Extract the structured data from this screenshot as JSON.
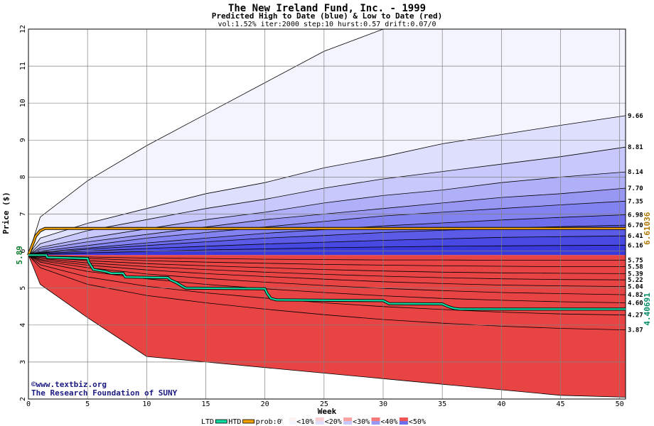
{
  "chart_data": {
    "type": "area",
    "title": "The New Ireland Fund, Inc. - 1999",
    "subtitle": "Predicted High to Date (blue) &  Low to Date (red)",
    "params": "vol:1.52% iter:2000 step:10 hurst:0.57 drift:0.07/0",
    "xlabel": "Week",
    "ylabel": "Price ($)",
    "xlim": [
      0,
      50.5
    ],
    "ylim": [
      2,
      12
    ],
    "x_ticks": [
      0,
      5,
      10,
      15,
      20,
      25,
      30,
      35,
      40,
      45,
      50
    ],
    "y_ticks": [
      2,
      3,
      4,
      5,
      6,
      7,
      8,
      9,
      10,
      11,
      12
    ],
    "grid": true,
    "start_price": "5.89",
    "start_value": 5.89,
    "right_labels_high": [
      "9.66",
      "8.81",
      "8.14",
      "7.70",
      "7.35",
      "6.98",
      "6.70",
      "6.41",
      "6.16"
    ],
    "right_labels_low": [
      "5.75",
      "5.58",
      "5.39",
      "5.22",
      "5.04",
      "4.82",
      "4.60",
      "4.27",
      "3.87"
    ],
    "high_bands": [
      {
        "x": [
          0,
          1,
          5,
          10,
          15,
          20,
          25,
          30,
          35,
          40,
          45,
          50.5
        ],
        "y": [
          5.89,
          6.92,
          7.9,
          8.85,
          9.7,
          10.55,
          11.4,
          12.0,
          12.0,
          12.0,
          12.0,
          12.0
        ]
      },
      {
        "x": [
          0,
          1,
          5,
          10,
          15,
          20,
          25,
          30,
          35,
          40,
          45,
          50.5
        ],
        "y": [
          5.89,
          6.35,
          6.75,
          7.15,
          7.55,
          7.85,
          8.25,
          8.55,
          8.9,
          9.15,
          9.4,
          9.66
        ]
      },
      {
        "x": [
          0,
          1,
          5,
          10,
          15,
          20,
          25,
          30,
          35,
          40,
          45,
          50.5
        ],
        "y": [
          5.89,
          6.2,
          6.55,
          6.85,
          7.15,
          7.4,
          7.7,
          7.95,
          8.15,
          8.35,
          8.55,
          8.81
        ]
      },
      {
        "x": [
          0,
          1,
          5,
          10,
          15,
          20,
          25,
          30,
          35,
          40,
          45,
          50.5
        ],
        "y": [
          5.89,
          6.1,
          6.35,
          6.6,
          6.85,
          7.05,
          7.3,
          7.5,
          7.65,
          7.85,
          8.0,
          8.14
        ]
      },
      {
        "x": [
          0,
          1,
          5,
          10,
          15,
          20,
          25,
          30,
          35,
          40,
          45,
          50.5
        ],
        "y": [
          5.89,
          6.05,
          6.25,
          6.45,
          6.65,
          6.85,
          7.0,
          7.15,
          7.3,
          7.45,
          7.55,
          7.7
        ]
      },
      {
        "x": [
          0,
          1,
          5,
          10,
          15,
          20,
          25,
          30,
          35,
          40,
          45,
          50.5
        ],
        "y": [
          5.89,
          6.0,
          6.15,
          6.35,
          6.5,
          6.65,
          6.8,
          6.95,
          7.05,
          7.15,
          7.25,
          7.35
        ]
      },
      {
        "x": [
          0,
          1,
          5,
          10,
          15,
          20,
          25,
          30,
          35,
          40,
          45,
          50.5
        ],
        "y": [
          5.89,
          5.97,
          6.08,
          6.22,
          6.35,
          6.48,
          6.58,
          6.68,
          6.76,
          6.84,
          6.91,
          6.98
        ]
      },
      {
        "x": [
          0,
          1,
          5,
          10,
          15,
          20,
          25,
          30,
          35,
          40,
          45,
          50.5
        ],
        "y": [
          5.89,
          5.95,
          6.05,
          6.15,
          6.25,
          6.35,
          6.42,
          6.5,
          6.56,
          6.62,
          6.66,
          6.7
        ]
      },
      {
        "x": [
          0,
          1,
          5,
          10,
          15,
          20,
          25,
          30,
          35,
          40,
          45,
          50.5
        ],
        "y": [
          5.89,
          5.93,
          6.0,
          6.07,
          6.13,
          6.19,
          6.24,
          6.29,
          6.33,
          6.37,
          6.39,
          6.41
        ]
      },
      {
        "x": [
          0,
          1,
          5,
          10,
          15,
          20,
          25,
          30,
          35,
          40,
          45,
          50.5
        ],
        "y": [
          5.89,
          5.91,
          5.95,
          5.99,
          6.03,
          6.06,
          6.09,
          6.11,
          6.13,
          6.14,
          6.15,
          6.16
        ]
      }
    ],
    "low_bands": [
      {
        "x": [
          0,
          1,
          5,
          10,
          15,
          20,
          25,
          30,
          35,
          40,
          45,
          50.5
        ],
        "y": [
          5.89,
          5.87,
          5.84,
          5.81,
          5.8,
          5.78,
          5.77,
          5.76,
          5.76,
          5.75,
          5.75,
          5.75
        ]
      },
      {
        "x": [
          0,
          1,
          5,
          10,
          15,
          20,
          25,
          30,
          35,
          40,
          45,
          50.5
        ],
        "y": [
          5.89,
          5.85,
          5.8,
          5.74,
          5.7,
          5.67,
          5.64,
          5.62,
          5.6,
          5.59,
          5.58,
          5.58
        ]
      },
      {
        "x": [
          0,
          1,
          5,
          10,
          15,
          20,
          25,
          30,
          35,
          40,
          45,
          50.5
        ],
        "y": [
          5.89,
          5.83,
          5.74,
          5.66,
          5.6,
          5.55,
          5.5,
          5.46,
          5.43,
          5.41,
          5.4,
          5.39
        ]
      },
      {
        "x": [
          0,
          1,
          5,
          10,
          15,
          20,
          25,
          30,
          35,
          40,
          45,
          50.5
        ],
        "y": [
          5.89,
          5.8,
          5.68,
          5.58,
          5.5,
          5.43,
          5.37,
          5.32,
          5.28,
          5.25,
          5.23,
          5.22
        ]
      },
      {
        "x": [
          0,
          1,
          5,
          10,
          15,
          20,
          25,
          30,
          35,
          40,
          45,
          50.5
        ],
        "y": [
          5.89,
          5.77,
          5.62,
          5.49,
          5.39,
          5.31,
          5.24,
          5.17,
          5.12,
          5.08,
          5.06,
          5.04
        ]
      },
      {
        "x": [
          0,
          1,
          5,
          10,
          15,
          20,
          25,
          30,
          35,
          40,
          45,
          50.5
        ],
        "y": [
          5.89,
          5.74,
          5.55,
          5.38,
          5.26,
          5.16,
          5.07,
          4.99,
          4.93,
          4.88,
          4.85,
          4.82
        ]
      },
      {
        "x": [
          0,
          1,
          5,
          10,
          15,
          20,
          25,
          30,
          35,
          40,
          45,
          50.5
        ],
        "y": [
          5.89,
          5.7,
          5.45,
          5.25,
          5.1,
          4.98,
          4.88,
          4.79,
          4.72,
          4.67,
          4.63,
          4.6
        ]
      },
      {
        "x": [
          0,
          1,
          5,
          10,
          15,
          20,
          25,
          30,
          35,
          40,
          45,
          50.5
        ],
        "y": [
          5.89,
          5.63,
          5.3,
          5.05,
          4.87,
          4.73,
          4.6,
          4.5,
          4.42,
          4.35,
          4.3,
          4.27
        ]
      },
      {
        "x": [
          0,
          1,
          5,
          10,
          15,
          20,
          25,
          30,
          35,
          40,
          45,
          50.5
        ],
        "y": [
          5.89,
          5.55,
          5.1,
          4.8,
          4.6,
          4.43,
          4.28,
          4.15,
          4.05,
          3.97,
          3.91,
          3.87
        ]
      },
      {
        "x": [
          0,
          1,
          5,
          10,
          15,
          20,
          25,
          30,
          35,
          40,
          45,
          50.5
        ],
        "y": [
          5.89,
          5.1,
          4.2,
          3.15,
          3.0,
          2.85,
          2.7,
          2.55,
          2.4,
          2.25,
          2.1,
          2.05
        ]
      }
    ],
    "htd": {
      "value": 6.61,
      "x": [
        0,
        0.5,
        0.6,
        1.0,
        1.4,
        50.5
      ],
      "y": [
        5.89,
        6.3,
        6.4,
        6.55,
        6.61,
        6.61
      ]
    },
    "ltd": {
      "x": [
        0,
        1.5,
        1.6,
        5.0,
        5.1,
        5.4,
        5.5,
        6.5,
        7.0,
        8.0,
        8.2,
        11.8,
        12.0,
        12.5,
        13.0,
        13.3,
        20.0,
        20.2,
        20.5,
        21.0,
        30.0,
        30.5,
        35.0,
        35.5,
        36.0,
        36.5,
        50.5
      ],
      "y": [
        5.89,
        5.89,
        5.83,
        5.8,
        5.7,
        5.55,
        5.5,
        5.45,
        5.4,
        5.4,
        5.3,
        5.28,
        5.22,
        5.15,
        5.05,
        5.0,
        4.98,
        4.85,
        4.72,
        4.68,
        4.66,
        4.58,
        4.57,
        4.5,
        4.45,
        4.43,
        4.43
      ]
    },
    "ltd_label": "4.40691",
    "htd_label": "6.61036",
    "legend": {
      "items": [
        "LTD",
        "HTD",
        "prob:0%",
        "<10%",
        "<20%",
        "<30%",
        "<40%",
        "<50%"
      ],
      "placement": "bottom"
    },
    "blue_colors": [
      "#f4f4fe",
      "#dedefd",
      "#c8c8fc",
      "#b0b0f8",
      "#9898f4",
      "#8282f0",
      "#6e6eec",
      "#5b5be8",
      "#4848e2",
      "#3a3adc"
    ],
    "red_colors": [
      "#fdf3f3",
      "#fde3e3",
      "#fcd0d0",
      "#fbbaba",
      "#f9a3a3",
      "#f78d8d",
      "#f47878",
      "#f16464",
      "#ee5454",
      "#e94444"
    ],
    "watermark_line1": "©www.textbiz.org",
    "watermark_line2": "The Research Foundation of SUNY",
    "htd_color": "#f0a000",
    "ltd_color": "#10d8a0"
  }
}
